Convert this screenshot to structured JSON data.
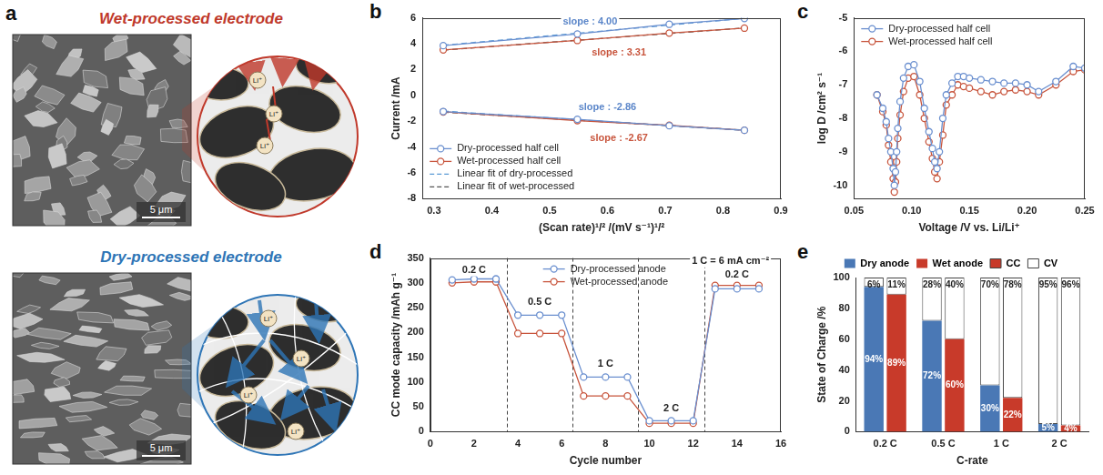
{
  "image_panel": {
    "panel": "a",
    "sections": [
      {
        "title": "Wet-processed electrode",
        "color": "#c0392b",
        "scale_bar": "5 μm",
        "ion": "Li⁺"
      },
      {
        "title": "Dry-processed electrode",
        "color": "#2e75b6",
        "scale_bar": "5 μm",
        "ion": "Li⁺"
      }
    ]
  },
  "chart_data": [
    {
      "panel": "b",
      "type": "line",
      "x_label": "(Scan rate)¹/² /(mV s⁻¹)¹/²",
      "y_label": "Current /mA",
      "xlim": [
        0.28,
        0.9
      ],
      "xticks": [
        0.3,
        0.4,
        0.5,
        0.6,
        0.7,
        0.8,
        0.9
      ],
      "ylim": [
        -8,
        6
      ],
      "yticks": [
        -8,
        -6,
        -4,
        -2,
        0,
        2,
        4,
        6
      ],
      "grid": false,
      "legend": "lower left",
      "x": [
        0.316,
        0.548,
        0.707,
        0.837,
        null,
        0.316,
        0.548,
        0.707,
        0.837
      ],
      "series": [
        {
          "name": "Dry-processed half cell",
          "color": "#6a8fcf",
          "marker": "open_circle",
          "line_style": "solid",
          "values": [
            3.85,
            4.75,
            5.5,
            5.95,
            null,
            -1.25,
            -1.85,
            -2.35,
            -2.7
          ]
        },
        {
          "name": "Wet-processed half cell",
          "color": "#c8553d",
          "marker": "open_circle",
          "line_style": "solid",
          "values": [
            3.52,
            4.25,
            4.82,
            5.2,
            null,
            -1.28,
            -1.95,
            -2.32,
            -2.7
          ]
        },
        {
          "name": "Linear fit of dry-processed",
          "color": "#5b9bd5",
          "marker": "none",
          "line_style": "dashed",
          "values": [
            3.88,
            4.81,
            5.44,
            5.96,
            null,
            -1.22,
            -1.88,
            -2.34,
            -2.71
          ]
        },
        {
          "name": "Linear fit of wet-processed",
          "color": "#555555",
          "marker": "none",
          "line_style": "dashed",
          "values": [
            3.5,
            4.27,
            4.79,
            5.22,
            null,
            -1.3,
            -1.92,
            -2.34,
            -2.69
          ]
        }
      ],
      "annotations": [
        {
          "text": "slope : 4.00",
          "color": "#5b86c9",
          "x": 0.57,
          "y": 5.7
        },
        {
          "text": "slope : 3.31",
          "color": "#c8553d",
          "x": 0.62,
          "y": 3.3
        },
        {
          "text": "slope : -2.86",
          "color": "#5b86c9",
          "x": 0.6,
          "y": -0.9
        },
        {
          "text": "slope : -2.67",
          "color": "#c8553d",
          "x": 0.62,
          "y": -3.3
        }
      ]
    },
    {
      "panel": "c",
      "type": "line",
      "x_label": "Voltage /V vs. Li/Li⁺",
      "y_label": "log D /cm² s⁻¹",
      "xlim": [
        0.05,
        0.25
      ],
      "xticks": [
        {
          "value": 0.05,
          "label": "0.05"
        },
        {
          "value": 0.1,
          "label": "0.10"
        },
        {
          "value": 0.15,
          "label": "0.15"
        },
        {
          "value": 0.2,
          "label": "0.20"
        },
        {
          "value": 0.25,
          "label": "0.25"
        }
      ],
      "ylim": [
        -10.4,
        -5
      ],
      "yticks": [
        -10,
        -9,
        -8,
        -7,
        -6,
        -5
      ],
      "grid": false,
      "legend": "upper left",
      "x": [
        0.07,
        0.075,
        0.078,
        0.08,
        0.082,
        0.084,
        0.085,
        0.086,
        0.087,
        0.088,
        0.09,
        0.093,
        0.097,
        0.102,
        0.107,
        0.111,
        0.115,
        0.118,
        0.12,
        0.122,
        0.124,
        0.127,
        0.13,
        0.135,
        0.14,
        0.145,
        0.15,
        0.16,
        0.17,
        0.18,
        0.19,
        0.2,
        0.21,
        0.225,
        0.24,
        0.25
      ],
      "series": [
        {
          "name": "Dry-processed half cell",
          "color": "#6a8fcf",
          "marker": "open_circle",
          "line_style": "solid",
          "values": [
            -7.3,
            -7.7,
            -8.1,
            -8.6,
            -9.0,
            -9.5,
            -10.0,
            -9.6,
            -9.0,
            -8.3,
            -7.5,
            -6.8,
            -6.45,
            -6.4,
            -6.9,
            -7.7,
            -8.4,
            -8.9,
            -9.3,
            -9.5,
            -9.0,
            -8.0,
            -7.3,
            -6.95,
            -6.75,
            -6.75,
            -6.8,
            -6.85,
            -6.9,
            -6.95,
            -6.95,
            -7.0,
            -7.2,
            -6.9,
            -6.45,
            -6.5
          ]
        },
        {
          "name": "Wet-processed half cell",
          "color": "#c8553d",
          "marker": "open_circle",
          "line_style": "solid",
          "values": [
            -7.3,
            -7.8,
            -8.2,
            -8.8,
            -9.3,
            -9.8,
            -10.2,
            -9.9,
            -9.3,
            -8.6,
            -7.9,
            -7.2,
            -6.8,
            -6.75,
            -7.3,
            -8.0,
            -8.7,
            -9.2,
            -9.6,
            -9.8,
            -9.3,
            -8.5,
            -7.6,
            -7.3,
            -7.0,
            -7.05,
            -7.1,
            -7.2,
            -7.3,
            -7.2,
            -7.15,
            -7.2,
            -7.3,
            -7.0,
            -6.6,
            -6.55
          ]
        }
      ]
    },
    {
      "panel": "d",
      "type": "line",
      "x_label": "Cycle number",
      "y_label": "CC mode capacity /mAh g⁻¹",
      "xlim": [
        0,
        16
      ],
      "xticks": [
        0,
        2,
        4,
        6,
        8,
        10,
        12,
        14,
        16
      ],
      "ylim": [
        0,
        350
      ],
      "yticks": [
        0,
        50,
        100,
        150,
        200,
        250,
        300,
        350
      ],
      "grid": false,
      "legend": "upper center",
      "x": [
        1,
        2,
        3,
        4,
        5,
        6,
        7,
        8,
        9,
        10,
        11,
        12,
        13,
        14,
        15
      ],
      "series": [
        {
          "name": "Dry-processed anode",
          "color": "#6a8fcf",
          "marker": "open_circle",
          "line_style": "solid",
          "values": [
            306,
            308,
            308,
            235,
            235,
            235,
            110,
            110,
            110,
            22,
            22,
            22,
            288,
            288,
            288
          ]
        },
        {
          "name": "Wet-processed anode",
          "color": "#c8553d",
          "marker": "open_circle",
          "line_style": "solid",
          "values": [
            300,
            302,
            302,
            198,
            198,
            198,
            72,
            72,
            72,
            17,
            17,
            17,
            295,
            295,
            295
          ]
        }
      ],
      "vlines": [
        3.5,
        6.5,
        9.5,
        12.5
      ],
      "annotations": [
        {
          "text": "0.2 C",
          "x": 2,
          "y": 326
        },
        {
          "text": "0.5 C",
          "x": 5,
          "y": 262
        },
        {
          "text": "1 C",
          "x": 8,
          "y": 136
        },
        {
          "text": "2 C",
          "x": 11,
          "y": 46
        },
        {
          "text": "0.2 C",
          "x": 14,
          "y": 316
        },
        {
          "text": "1 C = 6 mA cm⁻²",
          "x": 13.7,
          "y": 344
        }
      ]
    },
    {
      "panel": "e",
      "type": "bar",
      "stacked": true,
      "data_labels": true,
      "x_label": "C-rate",
      "y_label": "State of Charge /%",
      "categories": [
        "0.2 C",
        "0.5 C",
        "1 C",
        "2 C"
      ],
      "ylim": [
        0,
        100
      ],
      "yticks": [
        0,
        20,
        40,
        60,
        80,
        100
      ],
      "grid": false,
      "legend": "top",
      "parts": [
        {
          "name": "CC",
          "color": "#c83a2a"
        },
        {
          "name": "CV",
          "color": "#ffffff"
        }
      ],
      "series": [
        {
          "name": "Dry anode",
          "color": "#4a78b5",
          "values": [
            [
              94,
              72,
              30,
              5
            ],
            [
              6,
              28,
              70,
              95
            ]
          ],
          "value_labels": [
            [
              "94%",
              "72%",
              "30%",
              "5%"
            ],
            [
              "6%",
              "28%",
              "70%",
              "95%"
            ]
          ]
        },
        {
          "name": "Wet anode",
          "color": "#c83a2a",
          "values": [
            [
              89,
              60,
              22,
              4
            ],
            [
              11,
              40,
              78,
              96
            ]
          ],
          "value_labels": [
            [
              "89%",
              "60%",
              "22%",
              "4%"
            ],
            [
              "11%",
              "40%",
              "78%",
              "96%"
            ]
          ]
        }
      ]
    }
  ]
}
